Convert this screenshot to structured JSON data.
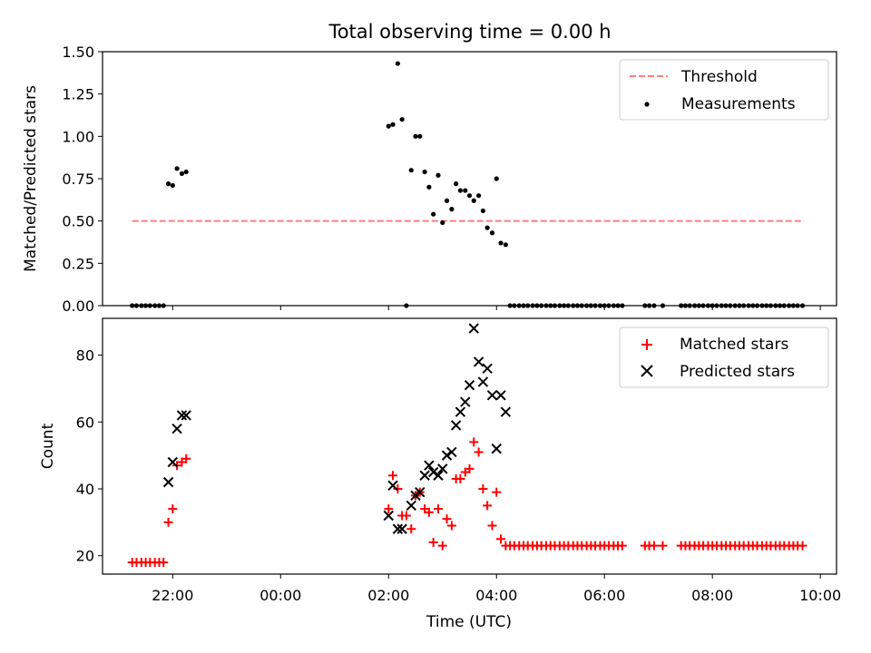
{
  "chart_data": [
    {
      "type": "scatter",
      "title": "Total observing time = 0.00 h",
      "xlabel": "",
      "ylabel": "Matched/Predicted stars",
      "ylim": [
        0,
        1.5
      ],
      "yticks": [
        0,
        0.25,
        0.5,
        0.75,
        1.0,
        1.25,
        1.5
      ],
      "ytick_labels": [
        "0.00",
        "0.25",
        "0.50",
        "0.75",
        "1.00",
        "1.25",
        "1.50"
      ],
      "xlim_hours": [
        -3.3,
        10.3
      ],
      "legend_position": "upper right",
      "threshold": {
        "name": "Threshold",
        "value": 0.5,
        "x_range_hours": [
          -2.75,
          9.7
        ],
        "color": "#ff7f7f",
        "style": "dashed"
      },
      "series": [
        {
          "name": "Measurements",
          "color": "#000000",
          "marker": "dot",
          "points": [
            [
              -2.75,
              0
            ],
            [
              -2.67,
              0
            ],
            [
              -2.58,
              0
            ],
            [
              -2.5,
              0
            ],
            [
              -2.42,
              0
            ],
            [
              -2.33,
              0
            ],
            [
              -2.25,
              0
            ],
            [
              -2.17,
              0
            ],
            [
              -2.08,
              0.72
            ],
            [
              -2.0,
              0.71
            ],
            [
              -1.92,
              0.81
            ],
            [
              -1.83,
              0.78
            ],
            [
              -1.75,
              0.79
            ],
            [
              2.0,
              1.06
            ],
            [
              2.08,
              1.07
            ],
            [
              2.17,
              1.43
            ],
            [
              2.25,
              1.1
            ],
            [
              2.33,
              0.0
            ],
            [
              2.42,
              0.8
            ],
            [
              2.5,
              1.0
            ],
            [
              2.58,
              1.0
            ],
            [
              2.67,
              0.79
            ],
            [
              2.75,
              0.7
            ],
            [
              2.83,
              0.54
            ],
            [
              2.92,
              0.77
            ],
            [
              3.0,
              0.49
            ],
            [
              3.08,
              0.62
            ],
            [
              3.17,
              0.57
            ],
            [
              3.25,
              0.72
            ],
            [
              3.33,
              0.68
            ],
            [
              3.42,
              0.68
            ],
            [
              3.5,
              0.65
            ],
            [
              3.58,
              0.62
            ],
            [
              3.67,
              0.65
            ],
            [
              3.75,
              0.56
            ],
            [
              3.83,
              0.46
            ],
            [
              3.92,
              0.43
            ],
            [
              4.0,
              0.75
            ],
            [
              4.08,
              0.37
            ],
            [
              4.17,
              0.36
            ],
            [
              4.25,
              0
            ],
            [
              4.33,
              0
            ],
            [
              4.42,
              0
            ],
            [
              4.5,
              0
            ],
            [
              4.58,
              0
            ],
            [
              4.67,
              0
            ],
            [
              4.75,
              0
            ],
            [
              4.83,
              0
            ],
            [
              4.92,
              0
            ],
            [
              5.0,
              0
            ],
            [
              5.08,
              0
            ],
            [
              5.17,
              0
            ],
            [
              5.25,
              0
            ],
            [
              5.33,
              0
            ],
            [
              5.42,
              0
            ],
            [
              5.5,
              0
            ],
            [
              5.58,
              0
            ],
            [
              5.67,
              0
            ],
            [
              5.75,
              0
            ],
            [
              5.83,
              0
            ],
            [
              5.92,
              0
            ],
            [
              6.0,
              0
            ],
            [
              6.08,
              0
            ],
            [
              6.17,
              0
            ],
            [
              6.25,
              0
            ],
            [
              6.33,
              0
            ],
            [
              6.75,
              0
            ],
            [
              6.83,
              0
            ],
            [
              6.92,
              0
            ],
            [
              7.08,
              0
            ],
            [
              7.42,
              0
            ],
            [
              7.5,
              0
            ],
            [
              7.58,
              0
            ],
            [
              7.67,
              0
            ],
            [
              7.75,
              0
            ],
            [
              7.83,
              0
            ],
            [
              7.92,
              0
            ],
            [
              8.0,
              0
            ],
            [
              8.08,
              0
            ],
            [
              8.17,
              0
            ],
            [
              8.25,
              0
            ],
            [
              8.33,
              0
            ],
            [
              8.42,
              0
            ],
            [
              8.5,
              0
            ],
            [
              8.58,
              0
            ],
            [
              8.67,
              0
            ],
            [
              8.75,
              0
            ],
            [
              8.83,
              0
            ],
            [
              8.92,
              0
            ],
            [
              9.0,
              0
            ],
            [
              9.08,
              0
            ],
            [
              9.17,
              0
            ],
            [
              9.25,
              0
            ],
            [
              9.33,
              0
            ],
            [
              9.42,
              0
            ],
            [
              9.5,
              0
            ],
            [
              9.58,
              0
            ],
            [
              9.67,
              0
            ]
          ]
        }
      ]
    },
    {
      "type": "scatter",
      "title": "",
      "xlabel": "Time (UTC)",
      "ylabel": "Count",
      "ylim": [
        14.5,
        91
      ],
      "yticks": [
        20,
        40,
        60,
        80
      ],
      "ytick_labels": [
        "20",
        "40",
        "60",
        "80"
      ],
      "xlim_hours": [
        -3.3,
        10.3
      ],
      "xticks_hours": [
        -2,
        0,
        2,
        4,
        6,
        8,
        10
      ],
      "xtick_labels": [
        "22:00",
        "00:00",
        "02:00",
        "04:00",
        "06:00",
        "08:00",
        "10:00"
      ],
      "legend_position": "upper right",
      "series": [
        {
          "name": "Matched stars",
          "color": "#ff0000",
          "marker": "plus",
          "points": [
            [
              -2.75,
              18
            ],
            [
              -2.67,
              18
            ],
            [
              -2.58,
              18
            ],
            [
              -2.5,
              18
            ],
            [
              -2.42,
              18
            ],
            [
              -2.33,
              18
            ],
            [
              -2.25,
              18
            ],
            [
              -2.17,
              18
            ],
            [
              -2.08,
              30
            ],
            [
              -2.0,
              34
            ],
            [
              -1.92,
              47
            ],
            [
              -1.83,
              48
            ],
            [
              -1.75,
              49
            ],
            [
              2.0,
              34
            ],
            [
              2.08,
              44
            ],
            [
              2.17,
              40
            ],
            [
              2.25,
              32
            ],
            [
              2.33,
              32
            ],
            [
              2.42,
              28
            ],
            [
              2.5,
              38
            ],
            [
              2.58,
              39
            ],
            [
              2.67,
              34
            ],
            [
              2.75,
              33
            ],
            [
              2.83,
              24
            ],
            [
              2.92,
              34
            ],
            [
              3.0,
              23
            ],
            [
              3.08,
              31
            ],
            [
              3.17,
              29
            ],
            [
              3.25,
              43
            ],
            [
              3.33,
              43
            ],
            [
              3.42,
              45
            ],
            [
              3.5,
              46
            ],
            [
              3.58,
              54
            ],
            [
              3.67,
              51
            ],
            [
              3.75,
              40
            ],
            [
              3.83,
              35
            ],
            [
              3.92,
              29
            ],
            [
              4.0,
              39
            ],
            [
              4.08,
              25
            ],
            [
              4.17,
              23
            ],
            [
              4.25,
              23
            ],
            [
              4.33,
              23
            ],
            [
              4.42,
              23
            ],
            [
              4.5,
              23
            ],
            [
              4.58,
              23
            ],
            [
              4.67,
              23
            ],
            [
              4.75,
              23
            ],
            [
              4.83,
              23
            ],
            [
              4.92,
              23
            ],
            [
              5.0,
              23
            ],
            [
              5.08,
              23
            ],
            [
              5.17,
              23
            ],
            [
              5.25,
              23
            ],
            [
              5.33,
              23
            ],
            [
              5.42,
              23
            ],
            [
              5.5,
              23
            ],
            [
              5.58,
              23
            ],
            [
              5.67,
              23
            ],
            [
              5.75,
              23
            ],
            [
              5.83,
              23
            ],
            [
              5.92,
              23
            ],
            [
              6.0,
              23
            ],
            [
              6.08,
              23
            ],
            [
              6.17,
              23
            ],
            [
              6.25,
              23
            ],
            [
              6.33,
              23
            ],
            [
              6.75,
              23
            ],
            [
              6.83,
              23
            ],
            [
              6.92,
              23
            ],
            [
              7.08,
              23
            ],
            [
              7.42,
              23
            ],
            [
              7.5,
              23
            ],
            [
              7.58,
              23
            ],
            [
              7.67,
              23
            ],
            [
              7.75,
              23
            ],
            [
              7.83,
              23
            ],
            [
              7.92,
              23
            ],
            [
              8.0,
              23
            ],
            [
              8.08,
              23
            ],
            [
              8.17,
              23
            ],
            [
              8.25,
              23
            ],
            [
              8.33,
              23
            ],
            [
              8.42,
              23
            ],
            [
              8.5,
              23
            ],
            [
              8.58,
              23
            ],
            [
              8.67,
              23
            ],
            [
              8.75,
              23
            ],
            [
              8.83,
              23
            ],
            [
              8.92,
              23
            ],
            [
              9.0,
              23
            ],
            [
              9.08,
              23
            ],
            [
              9.17,
              23
            ],
            [
              9.25,
              23
            ],
            [
              9.33,
              23
            ],
            [
              9.42,
              23
            ],
            [
              9.5,
              23
            ],
            [
              9.58,
              23
            ],
            [
              9.67,
              23
            ]
          ]
        },
        {
          "name": "Predicted stars",
          "color": "#000000",
          "marker": "x",
          "points": [
            [
              -2.08,
              42
            ],
            [
              -2.0,
              48
            ],
            [
              -1.92,
              58
            ],
            [
              -1.83,
              62
            ],
            [
              -1.75,
              62
            ],
            [
              2.0,
              32
            ],
            [
              2.08,
              41
            ],
            [
              2.17,
              28
            ],
            [
              2.25,
              28
            ],
            [
              2.42,
              35
            ],
            [
              2.5,
              38
            ],
            [
              2.58,
              39
            ],
            [
              2.67,
              44
            ],
            [
              2.75,
              47
            ],
            [
              2.83,
              45
            ],
            [
              2.92,
              44
            ],
            [
              3.0,
              46
            ],
            [
              3.08,
              50
            ],
            [
              3.17,
              51
            ],
            [
              3.25,
              59
            ],
            [
              3.33,
              63
            ],
            [
              3.42,
              66
            ],
            [
              3.5,
              71
            ],
            [
              3.58,
              88
            ],
            [
              3.67,
              78
            ],
            [
              3.75,
              72
            ],
            [
              3.83,
              76
            ],
            [
              3.92,
              68
            ],
            [
              4.0,
              52
            ],
            [
              4.08,
              68
            ],
            [
              4.17,
              63
            ]
          ]
        }
      ]
    }
  ]
}
